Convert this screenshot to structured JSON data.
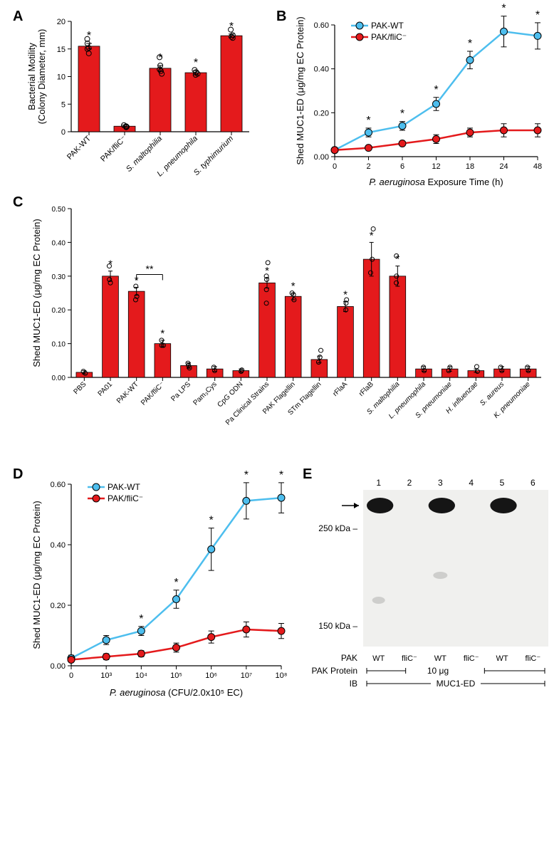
{
  "panelA": {
    "label": "A",
    "type": "bar",
    "ylabel": "Bacterial Motility\n(Colony Diameter, mm)",
    "ylim": [
      0,
      20
    ],
    "yticks": [
      0,
      5,
      10,
      15,
      20
    ],
    "categories": [
      "PAK-WT",
      "PAK/fliC⁻",
      "S. maltophilia",
      "L. pneumophila",
      "S. typhimurium"
    ],
    "values": [
      15.5,
      1.0,
      11.5,
      10.7,
      17.4
    ],
    "errors": [
      0.5,
      0.2,
      0.5,
      0.4,
      0.3
    ],
    "bar_color": "#e41a1c",
    "sig": [
      "*",
      "",
      "*",
      "*",
      "*"
    ],
    "label_fontsize": 13,
    "tick_fontsize": 11,
    "dots": [
      [
        15.0,
        15.2,
        16.0,
        16.8,
        14.2
      ],
      [
        0.8,
        1.0,
        1.2,
        0.9
      ],
      [
        11.0,
        11.3,
        12.0,
        13.5,
        10.5
      ],
      [
        10.3,
        10.8,
        11.2,
        10.5
      ],
      [
        17.0,
        17.5,
        18.5,
        17.2
      ]
    ]
  },
  "panelB": {
    "label": "B",
    "type": "line",
    "ylabel": "Shed MUC1-ED (μg/mg EC Protein)",
    "xlabel": "P. aeruginosa Exposure Time (h)",
    "ylim": [
      0,
      0.6
    ],
    "yticks": [
      0,
      0.2,
      0.4,
      0.6
    ],
    "xticks": [
      0,
      2,
      6,
      12,
      18,
      24,
      48
    ],
    "series": [
      {
        "name": "PAK-WT",
        "color": "#4dbeee",
        "values": [
          0.03,
          0.11,
          0.14,
          0.24,
          0.44,
          0.57,
          0.55
        ],
        "errors": [
          0.01,
          0.02,
          0.02,
          0.03,
          0.04,
          0.07,
          0.06
        ],
        "sig": [
          "",
          "*",
          "*",
          "*",
          "*",
          "*",
          "*"
        ]
      },
      {
        "name": "PAK/fliC⁻",
        "color": "#e41a1c",
        "values": [
          0.03,
          0.04,
          0.06,
          0.08,
          0.11,
          0.12,
          0.12
        ],
        "errors": [
          0.01,
          0.01,
          0.01,
          0.02,
          0.02,
          0.03,
          0.03
        ],
        "sig": [
          "",
          "",
          "",
          "",
          "",
          "",
          ""
        ]
      }
    ],
    "label_fontsize": 13,
    "tick_fontsize": 11
  },
  "panelC": {
    "label": "C",
    "type": "bar",
    "ylabel": "Shed MUC1-ED (μg/mg EC Protein)",
    "ylim": [
      0,
      0.5
    ],
    "yticks": [
      0,
      0.1,
      0.2,
      0.3,
      0.4,
      0.5
    ],
    "categories": [
      "PBS",
      "PA01",
      "PAK-WT",
      "PAK/fliC⁻",
      "Pa LPS",
      "Pam₃Cys",
      "CpG ODN",
      "Pa Clinical Strains",
      "PAK Flagellin",
      "STm Flagellin",
      "rFlaA",
      "rFlaB",
      "S. maltophilia",
      "L. pneumophila",
      "S. pneumoniae",
      "H. influenzae",
      "S. aureus",
      "K. pneumoniae"
    ],
    "values": [
      0.015,
      0.3,
      0.255,
      0.1,
      0.035,
      0.025,
      0.02,
      0.28,
      0.24,
      0.053,
      0.21,
      0.35,
      0.3,
      0.025,
      0.025,
      0.02,
      0.025,
      0.025
    ],
    "errors": [
      0.005,
      0.015,
      0.012,
      0.01,
      0.008,
      0.007,
      0.005,
      0.015,
      0.01,
      0.01,
      0.015,
      0.05,
      0.03,
      0.007,
      0.007,
      0.005,
      0.007,
      0.007
    ],
    "sig": [
      "",
      "*",
      "*",
      "*",
      "",
      "",
      "",
      "*",
      "*",
      "",
      "*",
      "*",
      "*",
      "",
      "",
      "",
      "",
      ""
    ],
    "bracket": {
      "from": 2,
      "to": 3,
      "label": "**"
    },
    "bar_color": "#e41a1c",
    "label_fontsize": 13,
    "tick_fontsize": 10,
    "dots": [
      [
        0.012,
        0.018
      ],
      [
        0.29,
        0.33,
        0.28
      ],
      [
        0.24,
        0.27,
        0.23
      ],
      [
        0.095,
        0.11,
        0.095
      ],
      [
        0.028,
        0.042,
        0.035
      ],
      [
        0.02,
        0.03
      ],
      [
        0.018,
        0.022
      ],
      [
        0.26,
        0.29,
        0.3,
        0.34,
        0.22
      ],
      [
        0.23,
        0.25,
        0.245
      ],
      [
        0.045,
        0.06,
        0.08
      ],
      [
        0.2,
        0.22,
        0.23
      ],
      [
        0.31,
        0.35,
        0.44
      ],
      [
        0.28,
        0.36,
        0.3
      ],
      [
        0.02,
        0.03
      ],
      [
        0.02,
        0.03
      ],
      [
        0.018,
        0.032
      ],
      [
        0.02,
        0.03
      ],
      [
        0.02,
        0.03
      ]
    ]
  },
  "panelD": {
    "label": "D",
    "type": "line",
    "ylabel": "Shed MUC1-ED (μg/mg EC Protein)",
    "xlabel": "P. aeruginosa (CFU/2.0x10⁵ EC)",
    "ylim": [
      0,
      0.6
    ],
    "yticks": [
      0,
      0.2,
      0.4,
      0.6
    ],
    "xticks_labels": [
      "0",
      "10³",
      "10⁴",
      "10⁵",
      "10⁶",
      "10⁷",
      "10⁸"
    ],
    "series": [
      {
        "name": "PAK-WT",
        "color": "#4dbeee",
        "values": [
          0.025,
          0.085,
          0.115,
          0.22,
          0.385,
          0.545,
          0.555
        ],
        "errors": [
          0.01,
          0.015,
          0.015,
          0.03,
          0.07,
          0.06,
          0.05
        ],
        "sig": [
          "",
          "",
          "*",
          "*",
          "*",
          "*",
          "*"
        ]
      },
      {
        "name": "PAK/fliC⁻",
        "color": "#e41a1c",
        "values": [
          0.02,
          0.03,
          0.04,
          0.06,
          0.095,
          0.12,
          0.115
        ],
        "errors": [
          0.008,
          0.01,
          0.01,
          0.015,
          0.02,
          0.025,
          0.025
        ],
        "sig": [
          "",
          "",
          "",
          "",
          "",
          "",
          ""
        ]
      }
    ],
    "label_fontsize": 13,
    "tick_fontsize": 11
  },
  "panelE": {
    "label": "E",
    "type": "blot",
    "lanes": [
      "1",
      "2",
      "3",
      "4",
      "5",
      "6"
    ],
    "lane_labels_top": [
      "WT",
      "fliC⁻",
      "WT",
      "fliC⁻",
      "WT",
      "fliC⁻"
    ],
    "row_labels": {
      "PAK": "PAK",
      "PAK_Protein": "PAK Protein",
      "IB": "IB"
    },
    "protein_label": "10 μg",
    "ib_label": "MUC1-ED",
    "markers": [
      "250 kDa –",
      "150 kDa –"
    ],
    "band_lanes": [
      0,
      2,
      4
    ],
    "background_color": "#f0f0ee",
    "band_color": "#151515"
  }
}
